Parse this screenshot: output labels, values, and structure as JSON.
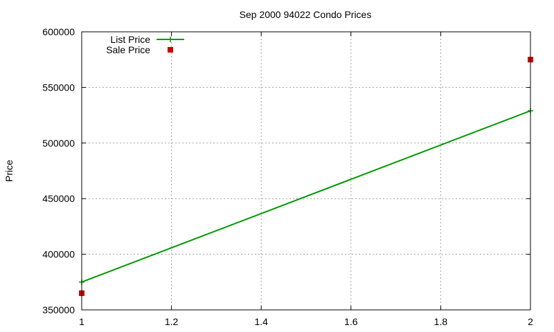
{
  "chart_data": {
    "type": "line",
    "title": "Sep 2000 94022 Condo Prices",
    "xlabel": "",
    "ylabel": "Price",
    "xlim": [
      1,
      2
    ],
    "ylim": [
      350000,
      600000
    ],
    "xticks": [
      1,
      1.2,
      1.4,
      1.6,
      1.8,
      2
    ],
    "xtick_labels": [
      "1",
      "1.2",
      "1.4",
      "1.6",
      "1.8",
      "2"
    ],
    "yticks": [
      350000,
      400000,
      450000,
      500000,
      550000,
      600000
    ],
    "ytick_labels": [
      "350000",
      "400000",
      "450000",
      "500000",
      "550000",
      "600000"
    ],
    "grid": true,
    "legend_position": "top-left",
    "series": [
      {
        "name": "List Price",
        "style": "linespoints",
        "marker": "plus",
        "color": "#009900",
        "x": [
          1,
          2
        ],
        "y": [
          375000,
          529000
        ]
      },
      {
        "name": "Sale Price",
        "style": "points",
        "marker": "square",
        "color": "#cc0000",
        "x": [
          1,
          2
        ],
        "y": [
          365000,
          575000
        ]
      }
    ]
  }
}
